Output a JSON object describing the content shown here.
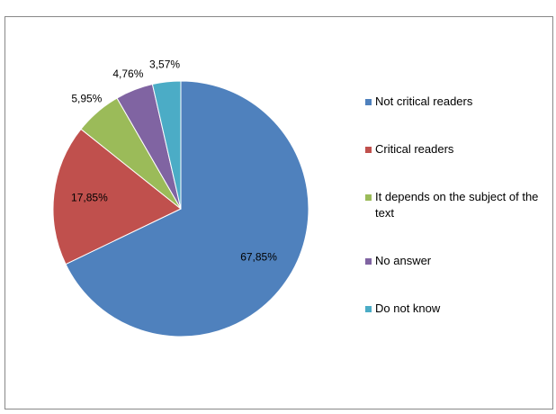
{
  "chart_data": {
    "type": "pie",
    "categories": [
      "Not critical readers",
      "Critical readers",
      "It depends on the subject of the text",
      "No answer",
      "Do not know"
    ],
    "values": [
      67.85,
      17.85,
      5.95,
      4.76,
      3.57
    ],
    "value_labels": [
      "67,85%",
      "17,85%",
      "5,95%",
      "4,76%",
      "3,57%"
    ],
    "colors": [
      "#4f81bd",
      "#c0504d",
      "#9bbb59",
      "#8064a2",
      "#4bacc6"
    ],
    "legend": "right"
  }
}
